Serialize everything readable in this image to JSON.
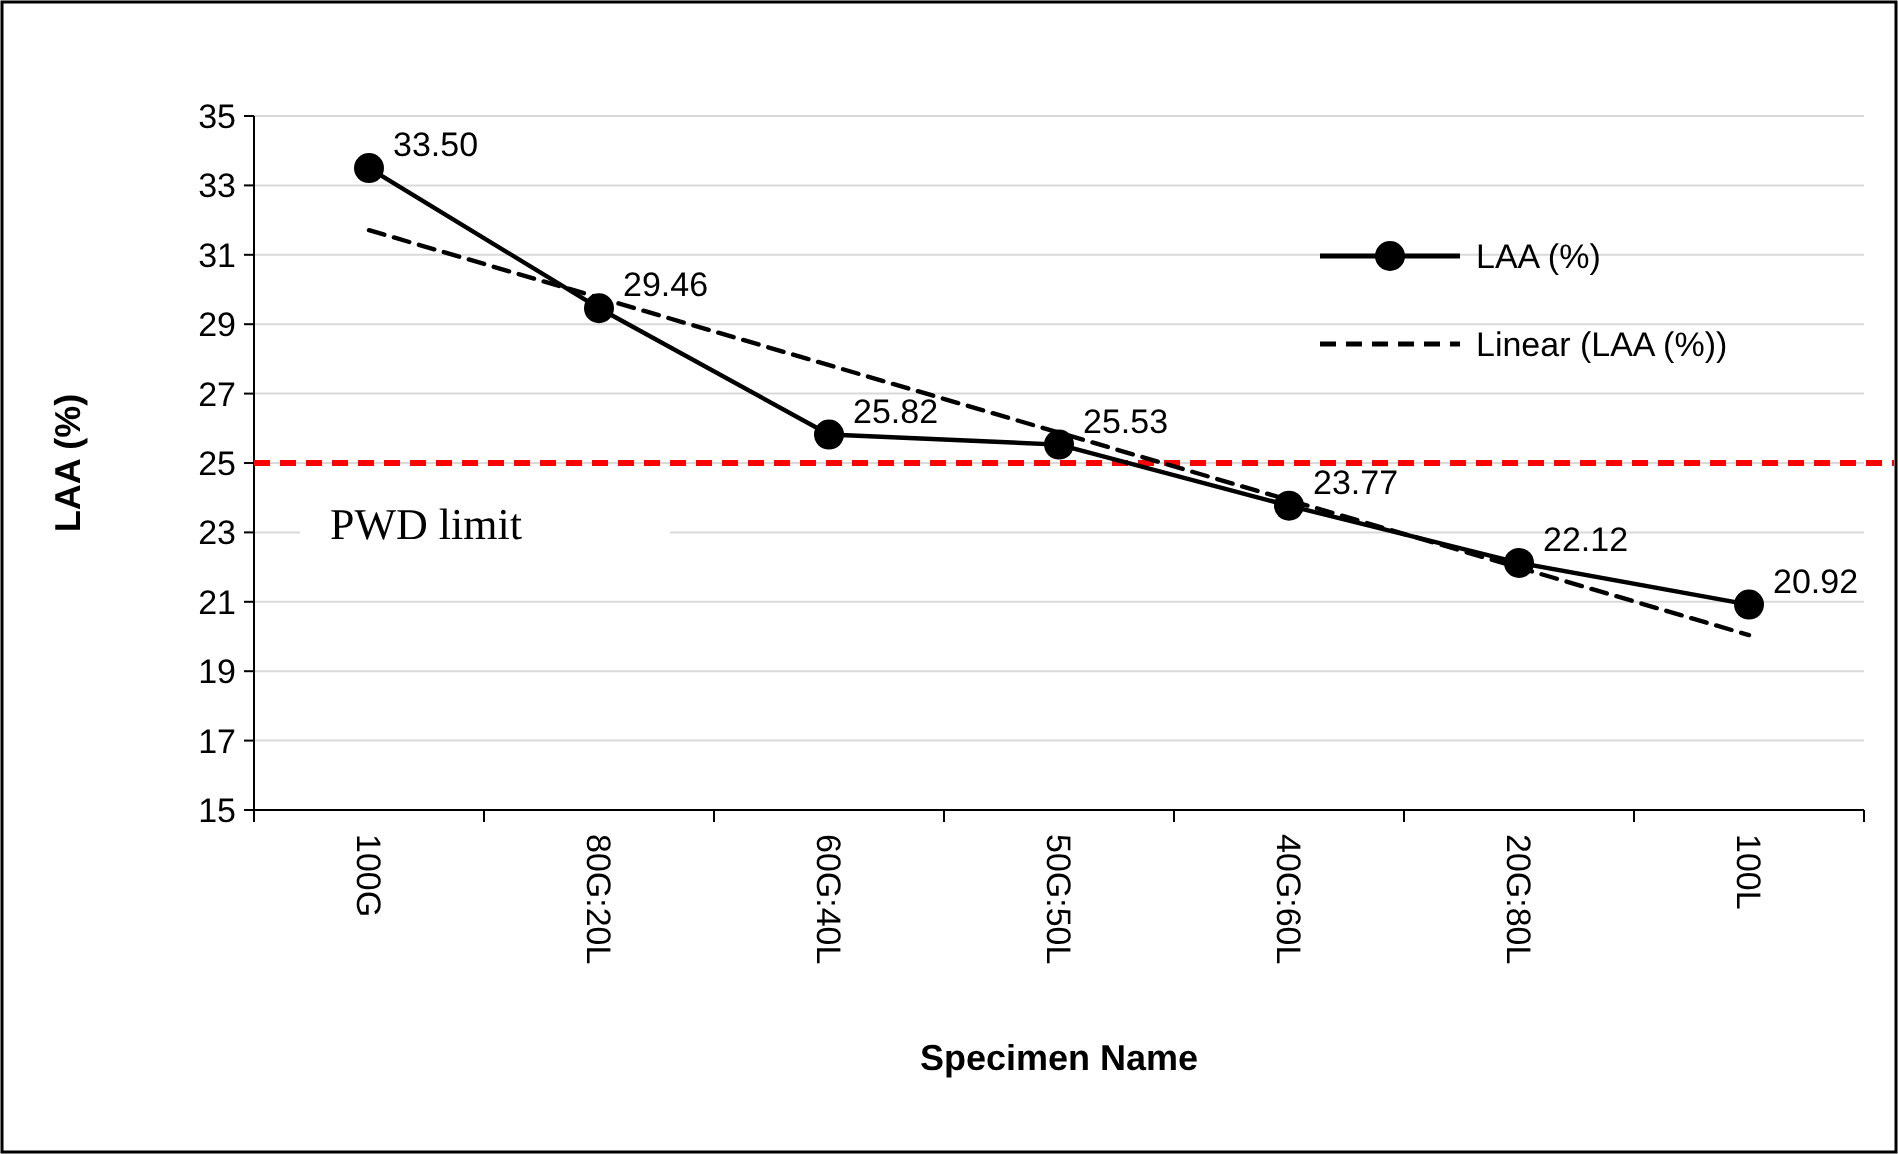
{
  "chart_data": {
    "type": "line",
    "xlabel": "Specimen Name",
    "ylabel": "LAA (%)",
    "categories": [
      "100G",
      "80G:20L",
      "60G:40L",
      "50G:50L",
      "40G:60L",
      "20G:80L",
      "100L"
    ],
    "series": [
      {
        "name": "LAA (%)",
        "color": "#000000",
        "values": [
          33.5,
          29.46,
          25.82,
          25.53,
          23.77,
          22.12,
          20.92
        ],
        "value_labels": [
          "33.50",
          "29.46",
          "25.82",
          "25.53",
          "23.77",
          "22.12",
          "20.92"
        ],
        "marker": "circle",
        "line_style": "solid"
      },
      {
        "name": "Linear (LAA (%))",
        "type": "line",
        "color": "#000000",
        "x": [
          "100G",
          "100L"
        ],
        "values": [
          31.71,
          20.04
        ],
        "marker": "none",
        "line_style": "dashed"
      }
    ],
    "ylim": [
      15,
      35
    ],
    "yticks": [
      15,
      17,
      19,
      21,
      23,
      25,
      27,
      29,
      31,
      33,
      35
    ],
    "grid": "y",
    "legend": "top right",
    "ref_lines": [
      {
        "axis": "y",
        "value": 25,
        "label": "PWD limit",
        "color": "#ff0000",
        "line_style": "dashed"
      }
    ]
  }
}
